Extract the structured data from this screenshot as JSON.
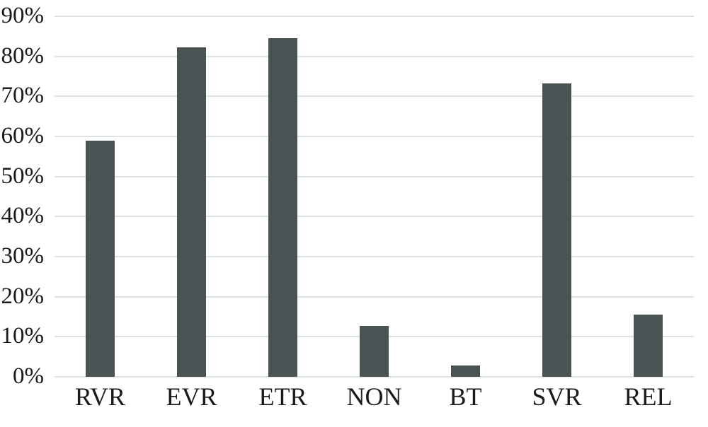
{
  "chart_data": {
    "type": "bar",
    "categories": [
      "RVR",
      "EVR",
      "ETR",
      "NON",
      "BT",
      "SVR",
      "REL"
    ],
    "values": [
      59,
      82.2,
      84.5,
      12.7,
      2.8,
      73.2,
      15.5
    ],
    "title": "",
    "xlabel": "",
    "ylabel": "",
    "ylim": [
      0,
      90
    ],
    "ytick_step": 10,
    "ytick_labels": [
      "0%",
      "10%",
      "20%",
      "30%",
      "40%",
      "50%",
      "60%",
      "70%",
      "80%",
      "90%"
    ],
    "grid": true,
    "legend": null,
    "colors": {
      "bar": "#4a5354",
      "gridline": "#dce3e1",
      "text": "#1a1a1a",
      "background": "#ffffff"
    }
  }
}
